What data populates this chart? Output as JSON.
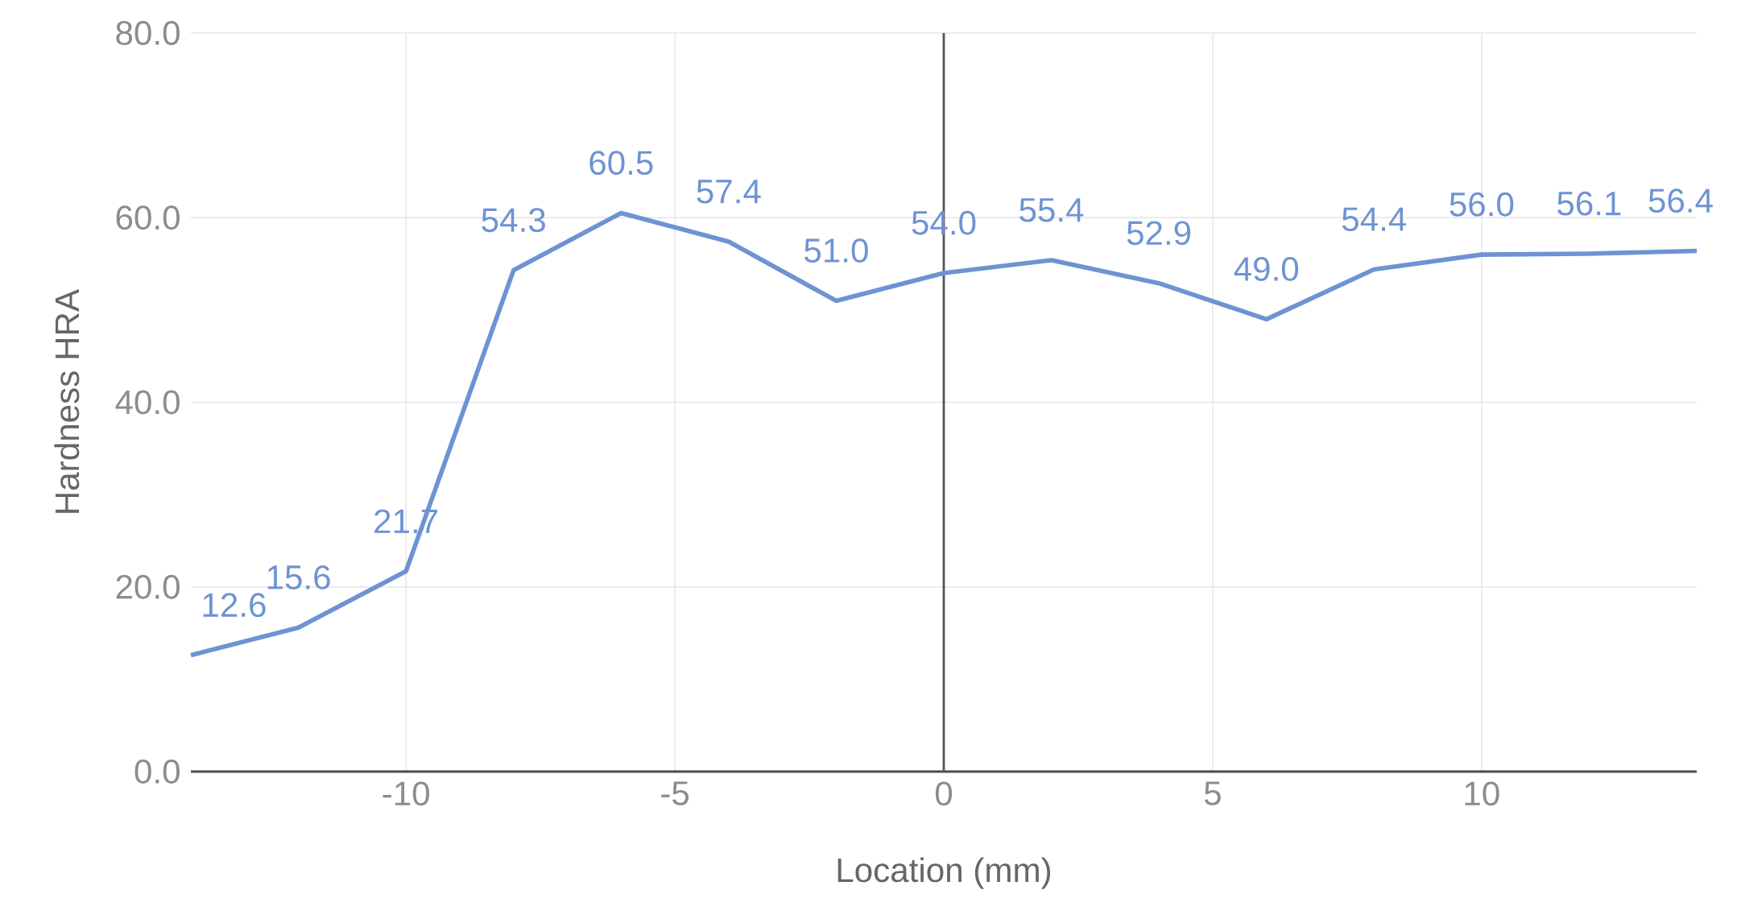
{
  "chart_data": {
    "type": "line",
    "xlabel": "Location (mm)",
    "ylabel": "Hardness HRA",
    "x": [
      -14,
      -12,
      -10,
      -8,
      -6,
      -4,
      -2,
      0,
      2,
      4,
      6,
      8,
      10,
      12,
      14
    ],
    "series": [
      {
        "color": "#6e93d3",
        "values": [
          12.6,
          15.6,
          21.7,
          54.3,
          60.5,
          57.4,
          51.0,
          54.0,
          55.4,
          52.9,
          49.0,
          54.4,
          56.0,
          56.1,
          56.4
        ],
        "value_labels": [
          "12.6",
          "15.6",
          "21.7",
          "54.3",
          "60.5",
          "57.4",
          "51.0",
          "54.0",
          "55.4",
          "52.9",
          "49.0",
          "54.4",
          "56.0",
          "56.1",
          "56.4"
        ]
      }
    ],
    "xlim": [
      -14,
      14
    ],
    "ylim": [
      0,
      80
    ],
    "xticks": [
      -10,
      -5,
      0,
      5,
      10
    ],
    "yticks": [
      {
        "value": 0,
        "label": "0.0"
      },
      {
        "value": 20,
        "label": "20.0"
      },
      {
        "value": 40,
        "label": "40.0"
      },
      {
        "value": 60,
        "label": "60.0"
      },
      {
        "value": 80,
        "label": "80.0"
      }
    ],
    "ref_lines": [
      {
        "axis": "x",
        "value": 0,
        "color": "#555555"
      }
    ],
    "grid": true,
    "marker": "none",
    "line_style": "solid"
  }
}
